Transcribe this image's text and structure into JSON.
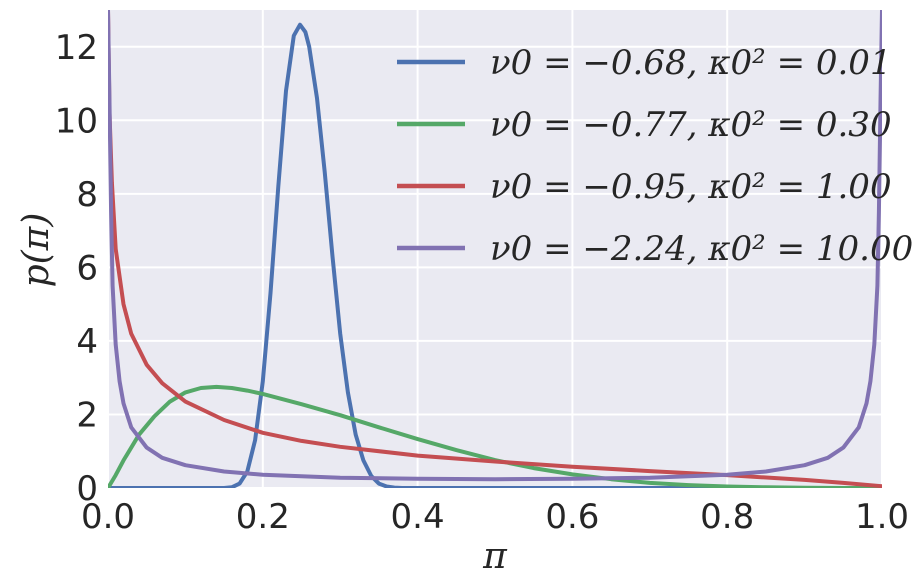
{
  "chart_data": {
    "type": "line",
    "title": "",
    "xlabel": "π",
    "ylabel": "p(π)",
    "xlim": [
      0.0,
      1.0
    ],
    "ylim": [
      0,
      13
    ],
    "grid": true,
    "legend_position": "top-right",
    "background_color": "#EAEAF2",
    "xticks": [
      0.0,
      0.2,
      0.4,
      0.6,
      0.8,
      1.0
    ],
    "xtick_labels": [
      "0.0",
      "0.2",
      "0.4",
      "0.6",
      "0.8",
      "1.0"
    ],
    "yticks": [
      0,
      2,
      4,
      6,
      8,
      10,
      12
    ],
    "ytick_labels": [
      "0",
      "2",
      "4",
      "6",
      "8",
      "10",
      "12"
    ],
    "series": [
      {
        "name": "ν0 = −0.68, κ0² = 0.01",
        "color": "#4C72B0",
        "x": [
          0.0,
          0.15,
          0.16,
          0.17,
          0.18,
          0.19,
          0.2,
          0.21,
          0.22,
          0.23,
          0.24,
          0.248,
          0.255,
          0.26,
          0.27,
          0.28,
          0.29,
          0.3,
          0.31,
          0.32,
          0.33,
          0.34,
          0.35,
          0.36,
          0.37,
          0.38,
          1.0
        ],
        "y": [
          0,
          0,
          0.02,
          0.12,
          0.45,
          1.3,
          2.9,
          5.3,
          8.2,
          10.8,
          12.3,
          12.6,
          12.4,
          12.0,
          10.6,
          8.6,
          6.3,
          4.2,
          2.6,
          1.45,
          0.75,
          0.33,
          0.12,
          0.04,
          0.01,
          0,
          0
        ]
      },
      {
        "name": "ν0 = −0.77, κ0² = 0.30",
        "color": "#55A868",
        "x": [
          0.0,
          0.01,
          0.02,
          0.04,
          0.06,
          0.08,
          0.1,
          0.12,
          0.14,
          0.16,
          0.18,
          0.2,
          0.25,
          0.3,
          0.35,
          0.4,
          0.45,
          0.5,
          0.55,
          0.6,
          0.65,
          0.7,
          0.75,
          0.8,
          0.85,
          0.9,
          0.95,
          1.0
        ],
        "y": [
          0.0,
          0.35,
          0.75,
          1.45,
          1.95,
          2.35,
          2.6,
          2.72,
          2.75,
          2.72,
          2.65,
          2.56,
          2.28,
          1.98,
          1.65,
          1.33,
          1.03,
          0.76,
          0.54,
          0.37,
          0.24,
          0.14,
          0.08,
          0.04,
          0.02,
          0.005,
          0.0,
          0.0
        ]
      },
      {
        "name": "ν0 = −0.95, κ0² = 1.00",
        "color": "#C44E52",
        "x": [
          0.0,
          0.002,
          0.005,
          0.01,
          0.02,
          0.03,
          0.05,
          0.07,
          0.1,
          0.15,
          0.2,
          0.25,
          0.3,
          0.4,
          0.5,
          0.6,
          0.7,
          0.8,
          0.9,
          0.95,
          1.0
        ],
        "y": [
          13,
          10.2,
          8.3,
          6.5,
          5.0,
          4.2,
          3.35,
          2.85,
          2.35,
          1.85,
          1.5,
          1.28,
          1.12,
          0.88,
          0.72,
          0.58,
          0.46,
          0.35,
          0.22,
          0.14,
          0.05
        ]
      },
      {
        "name": "ν0 = −2.24, κ0² = 10.00",
        "color": "#8172B2",
        "x": [
          0.0,
          0.002,
          0.004,
          0.006,
          0.01,
          0.015,
          0.02,
          0.03,
          0.05,
          0.07,
          0.1,
          0.15,
          0.2,
          0.3,
          0.4,
          0.5,
          0.6,
          0.7,
          0.8,
          0.85,
          0.9,
          0.93,
          0.95,
          0.97,
          0.98,
          0.985,
          0.99,
          0.994,
          0.996,
          0.998,
          1.0
        ],
        "y": [
          13,
          10.5,
          7.5,
          5.5,
          3.9,
          2.9,
          2.3,
          1.65,
          1.1,
          0.82,
          0.62,
          0.45,
          0.36,
          0.28,
          0.25,
          0.24,
          0.25,
          0.28,
          0.36,
          0.45,
          0.62,
          0.82,
          1.1,
          1.65,
          2.3,
          2.9,
          3.9,
          5.5,
          7.5,
          10.5,
          13
        ]
      }
    ]
  }
}
